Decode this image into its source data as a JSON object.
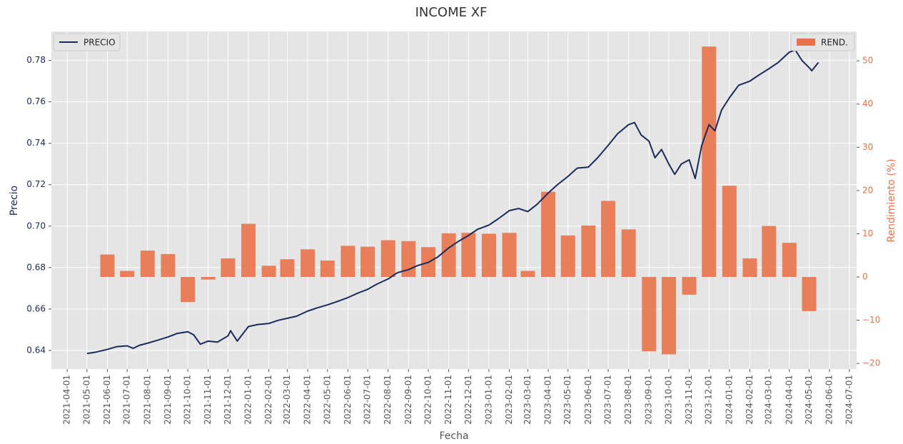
{
  "chart_data": {
    "type": "combo",
    "title": "INCOME XF",
    "x_label": "Fecha",
    "y_label": "Precio",
    "y2_label": "Rendimiento (%)",
    "grid": true,
    "xlim": [
      "2021-03-08",
      "2024-07-12"
    ],
    "xticks": [
      "2021-04-01",
      "2021-05-01",
      "2021-06-01",
      "2021-07-01",
      "2021-08-01",
      "2021-09-01",
      "2021-10-01",
      "2021-11-01",
      "2021-12-01",
      "2022-01-01",
      "2022-02-01",
      "2022-03-01",
      "2022-04-01",
      "2022-05-01",
      "2022-06-01",
      "2022-07-01",
      "2022-08-01",
      "2022-09-01",
      "2022-10-01",
      "2022-11-01",
      "2022-12-01",
      "2023-01-01",
      "2023-02-01",
      "2023-03-01",
      "2023-04-01",
      "2023-05-01",
      "2023-06-01",
      "2023-07-01",
      "2023-08-01",
      "2023-09-01",
      "2023-10-01",
      "2023-11-01",
      "2023-12-01",
      "2024-01-01",
      "2024-02-01",
      "2024-03-01",
      "2024-04-01",
      "2024-05-01",
      "2024-06-01",
      "2024-07-01"
    ],
    "ylim": [
      0.631,
      0.794
    ],
    "yticks": [
      0.64,
      0.66,
      0.68,
      {
        "value": 0.7,
        "label": "0.70"
      },
      0.72,
      0.74,
      0.76,
      0.78
    ],
    "y2lim": [
      -21.3,
      56.8
    ],
    "y2ticks": [
      {
        "value": -20,
        "label": "−20"
      },
      {
        "value": -10,
        "label": "−10"
      },
      0,
      10,
      20,
      30,
      40,
      50
    ],
    "series": [
      {
        "name": "PRECIO",
        "type": "line",
        "color": "#1b2a5a",
        "legend": "upper left",
        "x": [
          "2021-05-01",
          "2021-05-15",
          "2021-06-01",
          "2021-06-15",
          "2021-07-01",
          "2021-07-10",
          "2021-07-20",
          "2021-08-01",
          "2021-08-15",
          "2021-09-01",
          "2021-09-15",
          "2021-10-01",
          "2021-10-10",
          "2021-10-20",
          "2021-11-01",
          "2021-11-15",
          "2021-12-01",
          "2021-12-05",
          "2021-12-15",
          "2022-01-01",
          "2022-01-15",
          "2022-02-01",
          "2022-02-15",
          "2022-03-01",
          "2022-03-15",
          "2022-04-01",
          "2022-04-15",
          "2022-05-01",
          "2022-05-15",
          "2022-06-01",
          "2022-06-15",
          "2022-07-01",
          "2022-07-15",
          "2022-08-01",
          "2022-08-15",
          "2022-09-01",
          "2022-09-15",
          "2022-10-01",
          "2022-10-15",
          "2022-11-01",
          "2022-11-15",
          "2022-12-01",
          "2022-12-15",
          "2023-01-01",
          "2023-01-15",
          "2023-02-01",
          "2023-02-15",
          "2023-03-01",
          "2023-03-15",
          "2023-04-01",
          "2023-04-15",
          "2023-05-01",
          "2023-05-15",
          "2023-06-01",
          "2023-06-15",
          "2023-07-01",
          "2023-07-15",
          "2023-08-01",
          "2023-08-10",
          "2023-08-20",
          "2023-09-01",
          "2023-09-10",
          "2023-09-20",
          "2023-10-01",
          "2023-10-10",
          "2023-10-20",
          "2023-11-01",
          "2023-11-10",
          "2023-11-20",
          "2023-12-01",
          "2023-12-10",
          "2023-12-20",
          "2024-01-01",
          "2024-01-15",
          "2024-02-01",
          "2024-02-15",
          "2024-03-01",
          "2024-03-15",
          "2024-04-01",
          "2024-04-10",
          "2024-04-20",
          "2024-05-01",
          "2024-05-05",
          "2024-05-15"
        ],
        "values": [
          0.6385,
          0.6392,
          0.6405,
          0.6418,
          0.6422,
          0.641,
          0.6425,
          0.6435,
          0.6448,
          0.6465,
          0.6482,
          0.649,
          0.6475,
          0.643,
          0.6445,
          0.644,
          0.647,
          0.6495,
          0.6445,
          0.6515,
          0.6525,
          0.653,
          0.6545,
          0.6555,
          0.6565,
          0.659,
          0.6605,
          0.662,
          0.6635,
          0.6655,
          0.6675,
          0.6695,
          0.672,
          0.6745,
          0.6775,
          0.679,
          0.681,
          0.6825,
          0.685,
          0.6895,
          0.6925,
          0.6955,
          0.6985,
          0.7005,
          0.7035,
          0.7075,
          0.7085,
          0.707,
          0.7105,
          0.716,
          0.72,
          0.724,
          0.728,
          0.7285,
          0.733,
          0.739,
          0.7445,
          0.749,
          0.75,
          0.744,
          0.741,
          0.733,
          0.737,
          0.73,
          0.725,
          0.73,
          0.732,
          0.723,
          0.739,
          0.749,
          0.746,
          0.756,
          0.762,
          0.768,
          0.77,
          0.773,
          0.776,
          0.779,
          0.784,
          0.785,
          0.78,
          0.7765,
          0.775,
          0.779
        ]
      },
      {
        "name": "REND.",
        "type": "bar",
        "axis": "y2",
        "color": "#e8734a",
        "legend": "upper right",
        "x": [
          "2021-06-01",
          "2021-07-01",
          "2021-08-01",
          "2021-09-01",
          "2021-10-01",
          "2021-11-01",
          "2021-12-01",
          "2022-01-01",
          "2022-02-01",
          "2022-03-01",
          "2022-04-01",
          "2022-05-01",
          "2022-06-01",
          "2022-07-01",
          "2022-08-01",
          "2022-09-01",
          "2022-10-01",
          "2022-11-01",
          "2022-12-01",
          "2023-01-01",
          "2023-02-01",
          "2023-03-01",
          "2023-04-01",
          "2023-05-01",
          "2023-06-01",
          "2023-07-01",
          "2023-08-01",
          "2023-09-01",
          "2023-10-01",
          "2023-11-01",
          "2023-12-01",
          "2024-01-01",
          "2024-02-01",
          "2024-03-01",
          "2024-04-01",
          "2024-05-01"
        ],
        "values": [
          5.2,
          1.4,
          6.1,
          5.3,
          -5.8,
          -0.6,
          4.3,
          12.3,
          2.6,
          4.1,
          6.4,
          3.8,
          7.2,
          7.0,
          8.5,
          8.3,
          6.9,
          10.1,
          10.2,
          10.0,
          10.2,
          1.4,
          19.7,
          9.6,
          11.9,
          17.6,
          11.0,
          -17.2,
          -17.9,
          -4.1,
          53.3,
          21.1,
          4.3,
          11.8,
          7.9,
          -7.9
        ]
      }
    ]
  }
}
